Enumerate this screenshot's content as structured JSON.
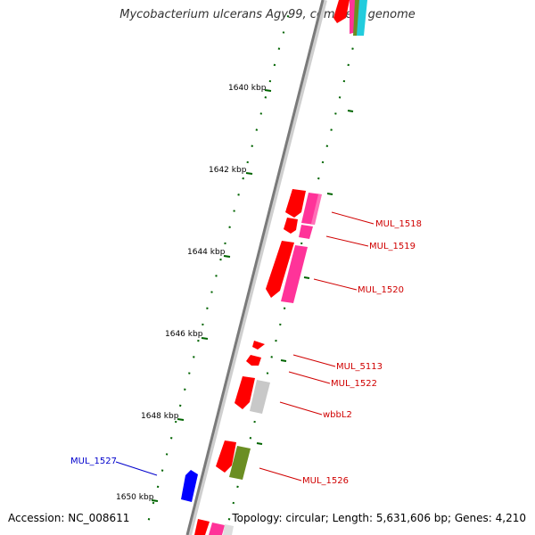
{
  "title": "Mycobacterium ulcerans Agy99, complete genome",
  "footer": {
    "accession": "Accession: NC_008611",
    "topology": "Topology: circular; Length: 5,631,606 bp; Genes: 4,210"
  },
  "scale_labels": [
    "1640 kbp",
    "1642 kbp",
    "1644 kbp",
    "1646 kbp",
    "1648 kbp",
    "1650 kbp"
  ],
  "genes": [
    {
      "name": "MUL_1518",
      "color": "#d00000"
    },
    {
      "name": "MUL_1519",
      "color": "#d00000"
    },
    {
      "name": "MUL_1520",
      "color": "#d00000"
    },
    {
      "name": "MUL_5113",
      "color": "#d00000"
    },
    {
      "name": "MUL_1522",
      "color": "#d00000"
    },
    {
      "name": "wbbL2",
      "color": "#d00000"
    },
    {
      "name": "MUL_1526",
      "color": "#d00000"
    },
    {
      "name": "MUL_1527",
      "color": "#0000cc"
    }
  ],
  "colors": {
    "backbone": "#8a8a8a",
    "feature_red": "#ff0000",
    "feature_pink": "#ff3399",
    "feature_gray": "#c8c8c8",
    "feature_olive": "#6b8e23",
    "feature_blue": "#0000ff",
    "feature_cyan": "#22ccdd",
    "ticks": "#006400"
  }
}
